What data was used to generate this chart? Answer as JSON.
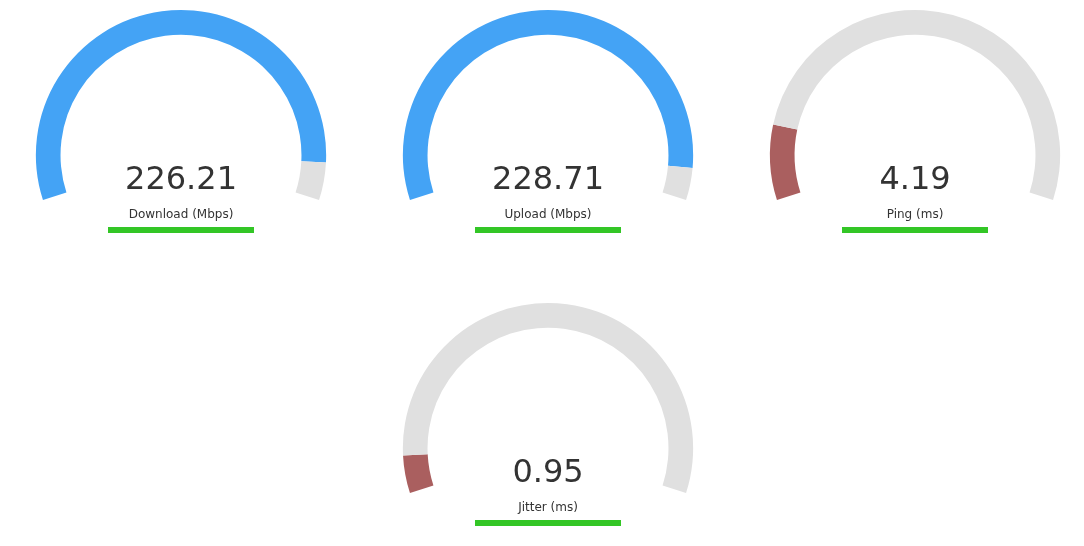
{
  "chart_data": [
    {
      "type": "donut",
      "title": "Download (Mbps)",
      "annotations": [
        "226.21"
      ],
      "categories": [
        null,
        null
      ],
      "values": [
        93,
        7
      ],
      "colors": [
        "#44a3f5",
        "#e0e0e0"
      ]
    },
    {
      "type": "donut",
      "title": "Upload (Mbps)",
      "annotations": [
        "228.71"
      ],
      "categories": [
        null,
        null
      ],
      "values": [
        94,
        6
      ],
      "colors": [
        "#44a3f5",
        "#e0e0e0"
      ]
    },
    {
      "type": "donut",
      "title": "Ping (ms)",
      "annotations": [
        "4.19"
      ],
      "categories": [
        null,
        null
      ],
      "values": [
        14,
        86
      ],
      "colors": [
        "#aa5f5f",
        "#e0e0e0"
      ]
    },
    {
      "type": "donut",
      "title": "Jitter (ms)",
      "annotations": [
        "0.95"
      ],
      "categories": [
        null,
        null
      ],
      "values": [
        7,
        93
      ],
      "colors": [
        "#aa5f5f",
        "#e0e0e0"
      ]
    }
  ]
}
